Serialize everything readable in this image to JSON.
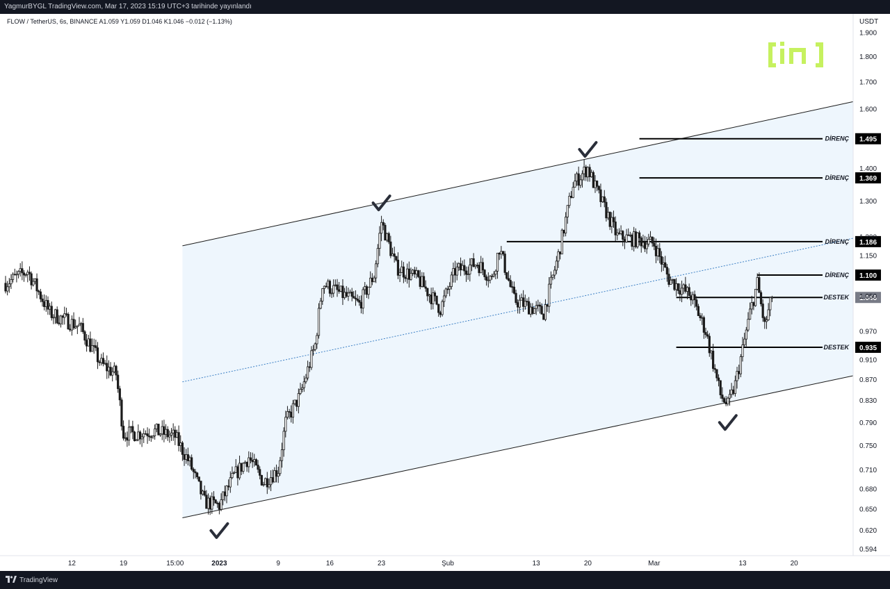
{
  "header": {
    "publish_line": "YagmurBYGL TradingView.com, Mar 17, 2023 15:19 UTC+3 tarihinde yayınlandı"
  },
  "symbol_line": "FLOW / TetherUS, 6s, BINANCE  A1.059  Y1.059  D1.046  K1.046  −0.012 (−1.13%)",
  "footer": {
    "brand": "TradingView"
  },
  "colors": {
    "channel_fill": "#eef6fd",
    "channel_line": "#1a1a1a",
    "midline": "#3b7fc4",
    "candle": "#1a1a1a",
    "level_line": "#000000",
    "level_box": "#000000",
    "last_price_box": "#787b86",
    "logo": "#c6f15f"
  },
  "icons": {
    "watermark": "beincrypto-logo",
    "bottom_logo": "tradingview-logo",
    "checkmark": "checkmark-icon"
  },
  "chart_data": {
    "type": "candlestick",
    "title": "FLOW / TetherUS, 6s, BINANCE",
    "ylabel": "USDT",
    "ylim": [
      0.585,
      1.98
    ],
    "y_scale": "log",
    "y_ticks": [
      "1.900",
      "1.800",
      "1.700",
      "1.600",
      "1.400",
      "1.300",
      "1.200",
      "1.150",
      "1.050",
      "0.970",
      "0.910",
      "0.870",
      "0.830",
      "0.790",
      "0.750",
      "0.710",
      "0.680",
      "0.650",
      "0.620",
      "0.594"
    ],
    "x_ticks": [
      "12",
      "19",
      "15:00",
      "2023",
      "9",
      "16",
      "23",
      "Şub",
      "13",
      "20",
      "Mar",
      "13",
      "20"
    ],
    "x_tick_dates": [
      "2022-12-12",
      "2022-12-19",
      "2022-12-26",
      "2023-01-01",
      "2023-01-09",
      "2023-01-16",
      "2023-01-23",
      "2023-02-01",
      "2023-02-13",
      "2023-02-20",
      "2023-03-01",
      "2023-03-13",
      "2023-03-20"
    ],
    "x_range": [
      "2022-12-03",
      "2023-03-28"
    ],
    "last_price": 1.046,
    "price_anchors": [
      {
        "date": "2022-12-03",
        "price": 1.08
      },
      {
        "date": "2022-12-06",
        "price": 1.11
      },
      {
        "date": "2022-12-09",
        "price": 1.01
      },
      {
        "date": "2022-12-13",
        "price": 0.98
      },
      {
        "date": "2022-12-16",
        "price": 0.9
      },
      {
        "date": "2022-12-18",
        "price": 0.88
      },
      {
        "date": "2022-12-19",
        "price": 0.77
      },
      {
        "date": "2022-12-21",
        "price": 0.77
      },
      {
        "date": "2022-12-23",
        "price": 0.775
      },
      {
        "date": "2022-12-26",
        "price": 0.765
      },
      {
        "date": "2022-12-28",
        "price": 0.72
      },
      {
        "date": "2022-12-30",
        "price": 0.66
      },
      {
        "date": "2023-01-01",
        "price": 0.655
      },
      {
        "date": "2023-01-03",
        "price": 0.7
      },
      {
        "date": "2023-01-05",
        "price": 0.73
      },
      {
        "date": "2023-01-07",
        "price": 0.69
      },
      {
        "date": "2023-01-09",
        "price": 0.71
      },
      {
        "date": "2023-01-10",
        "price": 0.79
      },
      {
        "date": "2023-01-12",
        "price": 0.84
      },
      {
        "date": "2023-01-14",
        "price": 0.94
      },
      {
        "date": "2023-01-15",
        "price": 1.08
      },
      {
        "date": "2023-01-18",
        "price": 1.05
      },
      {
        "date": "2023-01-20",
        "price": 1.03
      },
      {
        "date": "2023-01-22",
        "price": 1.1
      },
      {
        "date": "2023-01-23",
        "price": 1.24
      },
      {
        "date": "2023-01-25",
        "price": 1.12
      },
      {
        "date": "2023-01-28",
        "price": 1.09
      },
      {
        "date": "2023-01-31",
        "price": 1.02
      },
      {
        "date": "2023-02-02",
        "price": 1.11
      },
      {
        "date": "2023-02-05",
        "price": 1.13
      },
      {
        "date": "2023-02-07",
        "price": 1.09
      },
      {
        "date": "2023-02-08",
        "price": 1.17
      },
      {
        "date": "2023-02-10",
        "price": 1.04
      },
      {
        "date": "2023-02-14",
        "price": 1.01
      },
      {
        "date": "2023-02-16",
        "price": 1.15
      },
      {
        "date": "2023-02-18",
        "price": 1.35
      },
      {
        "date": "2023-02-20",
        "price": 1.4
      },
      {
        "date": "2023-02-21",
        "price": 1.34
      },
      {
        "date": "2023-02-24",
        "price": 1.2
      },
      {
        "date": "2023-02-27",
        "price": 1.19
      },
      {
        "date": "2023-03-01",
        "price": 1.18
      },
      {
        "date": "2023-03-03",
        "price": 1.09
      },
      {
        "date": "2023-03-06",
        "price": 1.05
      },
      {
        "date": "2023-03-08",
        "price": 0.97
      },
      {
        "date": "2023-03-10",
        "price": 0.84
      },
      {
        "date": "2023-03-11",
        "price": 0.82
      },
      {
        "date": "2023-03-12",
        "price": 0.86
      },
      {
        "date": "2023-03-13",
        "price": 0.93
      },
      {
        "date": "2023-03-14",
        "price": 1.01
      },
      {
        "date": "2023-03-15",
        "price": 1.08
      },
      {
        "date": "2023-03-16",
        "price": 0.98
      },
      {
        "date": "2023-03-17",
        "price": 1.046
      }
    ],
    "channel": {
      "upper": [
        {
          "date": "2022-12-27",
          "price": 1.175
        },
        {
          "date": "2023-03-28",
          "price": 1.625
        }
      ],
      "lower": [
        {
          "date": "2022-12-27",
          "price": 0.637
        },
        {
          "date": "2023-03-28",
          "price": 0.877
        }
      ],
      "mid": [
        {
          "date": "2022-12-27",
          "price": 0.865
        },
        {
          "date": "2023-03-28",
          "price": 1.195
        }
      ]
    },
    "levels": [
      {
        "label": "DİRENÇ",
        "value": 1.495,
        "value_text": "1.495",
        "start": "2023-02-27"
      },
      {
        "label": "DİRENÇ",
        "value": 1.369,
        "value_text": "1.369",
        "start": "2023-02-27"
      },
      {
        "label": "DİRENÇ",
        "value": 1.186,
        "value_text": "1.186",
        "start": "2023-02-09"
      },
      {
        "label": "DİRENÇ",
        "value": 1.1,
        "value_text": "1.100",
        "start": "2023-03-15"
      },
      {
        "label": "DESTEK",
        "value": 1.046,
        "value_text": "1.046",
        "start": "2023-03-04",
        "is_last_price": true
      },
      {
        "label": "DESTEK",
        "value": 0.935,
        "value_text": "0.935",
        "start": "2023-03-04"
      }
    ],
    "checkmarks": [
      {
        "date": "2023-01-01",
        "price": 0.617
      },
      {
        "date": "2023-01-23",
        "price": 1.29
      },
      {
        "date": "2023-02-20",
        "price": 1.455
      },
      {
        "date": "2023-03-11",
        "price": 0.787
      }
    ]
  }
}
